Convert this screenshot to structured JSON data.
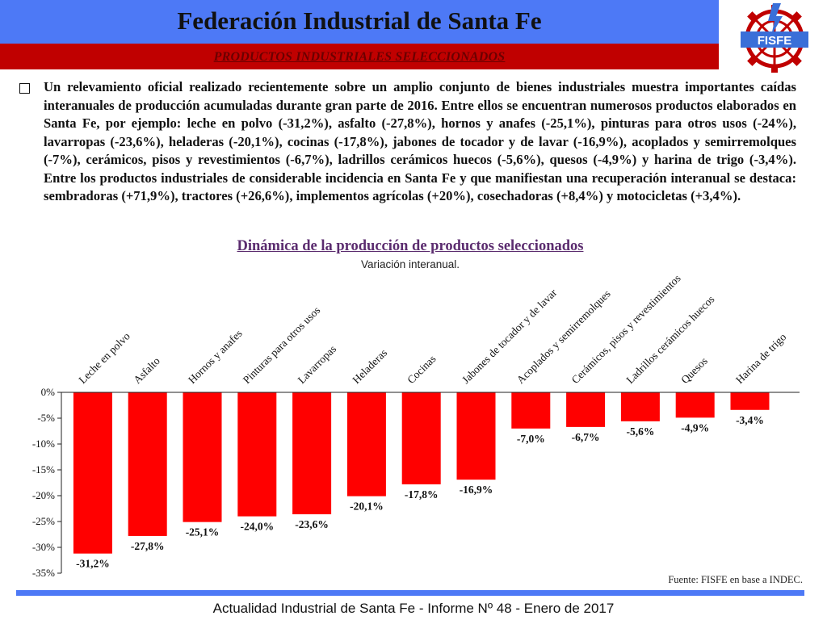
{
  "header": {
    "title": "Federación Industrial de Santa Fe",
    "subtitle": "PRODUCTOS INDUSTRIALES SELECCIONADOS",
    "logo_text": "FISFE"
  },
  "body": {
    "paragraph": "Un relevamiento oficial realizado recientemente sobre un amplio conjunto de bienes industriales muestra importantes caídas interanuales de producción acumuladas durante gran parte de 2016. Entre ellos se encuentran numerosos productos elaborados en Santa Fe, por ejemplo: leche en polvo (-31,2%), asfalto (-27,8%), hornos y anafes (-25,1%), pinturas para otros usos (-24%), lavarropas (-23,6%), heladeras (-20,1%), cocinas (-17,8%), jabones de tocador y de lavar (-16,9%), acoplados y semirremolques (-7%), cerámicos, pisos y revestimientos (-6,7%), ladrillos cerámicos huecos (-5,6%), quesos (-4,9%) y harina de trigo (-3,4%). Entre los productos industriales de considerable incidencia en Santa Fe y que manifiestan una recuperación interanual se destaca: sembradoras (+71,9%), tractores (+26,6%), implementos agrícolas (+20%), cosechadoras (+8,4%) y motocicletas (+3,4%)."
  },
  "chart_data": {
    "type": "bar",
    "title": "Dinámica de la producción de productos seleccionados",
    "subtitle": "Variación interanual.",
    "categories": [
      "Leche en polvo",
      "Asfalto",
      "Hornos y anafes",
      "Pinturas para otros usos",
      "Lavarropas",
      "Heladeras",
      "Cocinas",
      "Jabones de tocador y de lavar",
      "Acoplados y semirremolques",
      "Cerámicos, pisos y revestimientos",
      "Ladrillos cerámicos huecos",
      "Quesos",
      "Harina de trigo"
    ],
    "values": [
      -31.2,
      -27.8,
      -25.1,
      -24.0,
      -23.6,
      -20.1,
      -17.8,
      -16.9,
      -7.0,
      -6.7,
      -5.6,
      -4.9,
      -3.4
    ],
    "value_labels": [
      "-31,2%",
      "-27,8%",
      "-25,1%",
      "-24,0%",
      "-23,6%",
      "-20,1%",
      "-17,8%",
      "-16,9%",
      "-7,0%",
      "-6,7%",
      "-5,6%",
      "-4,9%",
      "-3,4%"
    ],
    "ylim": [
      -35,
      0
    ],
    "y_ticks": [
      0,
      -5,
      -10,
      -15,
      -20,
      -25,
      -30,
      -35
    ],
    "y_tick_labels": [
      "0%",
      "-5%",
      "-10%",
      "-15%",
      "-20%",
      "-25%",
      "-30%",
      "-35%"
    ],
    "grid": false,
    "bar_color": "#ff0000"
  },
  "source": "Fuente: FISFE en base a INDEC.",
  "footer": "Actualidad Industrial de Santa Fe - Informe Nº 48 - Enero de 2017",
  "colors": {
    "header_blue": "#4d79f6",
    "header_red": "#c00000",
    "chart_title": "#5b2c6f",
    "bar": "#ff0000"
  }
}
